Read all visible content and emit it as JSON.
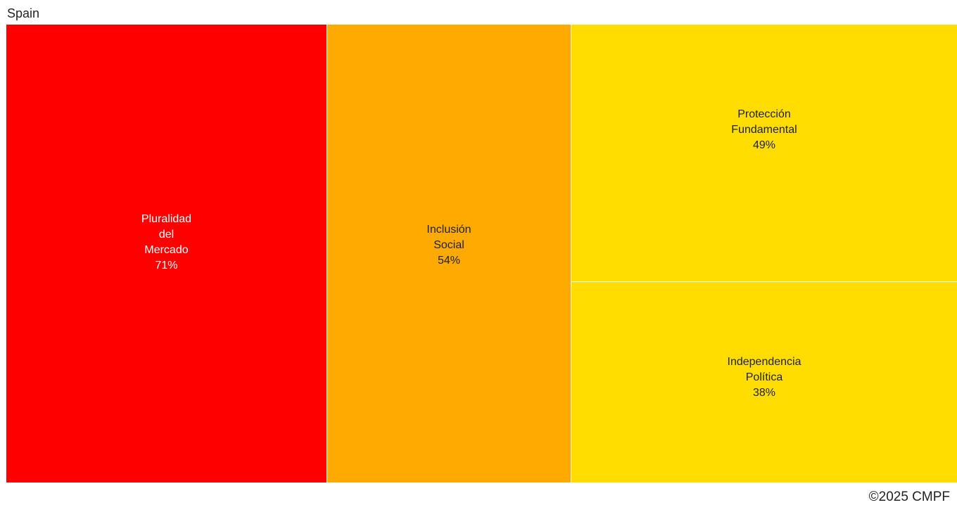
{
  "chart_data": {
    "type": "treemap",
    "title": "Spain",
    "items": [
      {
        "name_lines": [
          "Pluralidad",
          "del",
          "Mercado"
        ],
        "value_label": "71%",
        "value": 71,
        "color": "#ff0000",
        "text_color": "#ffffff"
      },
      {
        "name_lines": [
          "Inclusión",
          "Social"
        ],
        "value_label": "54%",
        "value": 54,
        "color": "#ffaa00",
        "text_color": "#222222"
      },
      {
        "name_lines": [
          "Protección",
          "Fundamental"
        ],
        "value_label": "49%",
        "value": 49,
        "color": "#ffdd00",
        "text_color": "#222222"
      },
      {
        "name_lines": [
          "Independencia",
          "Política"
        ],
        "value_label": "38%",
        "value": 38,
        "color": "#ffdd00",
        "text_color": "#222222"
      }
    ]
  },
  "footer": {
    "copyright": "©2025 CMPF"
  }
}
